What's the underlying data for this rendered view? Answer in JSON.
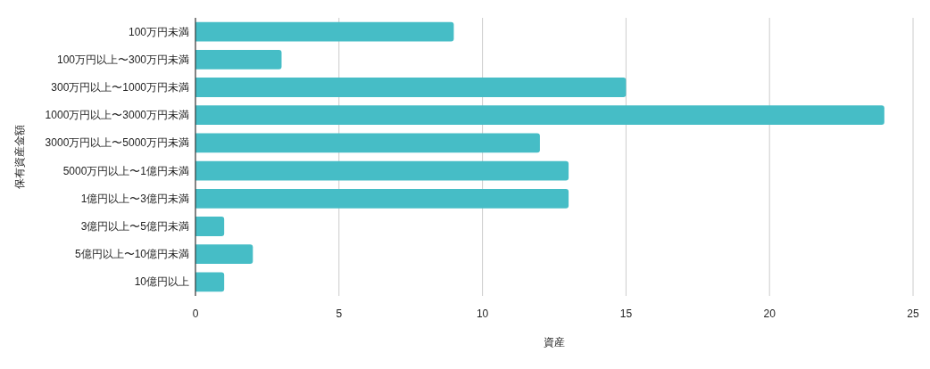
{
  "chart_data": {
    "type": "bar",
    "orientation": "horizontal",
    "xlabel": "資産",
    "ylabel": "保有資産金額",
    "categories": [
      "100万円未満",
      "100万円以上〜300万円未満",
      "300万円以上〜1000万円未満",
      "1000万円以上〜3000万円未満",
      "3000万円以上〜5000万円未満",
      "5000万円以上〜1億円未満",
      "1億円以上〜3億円未満",
      "3億円以上〜5億円未満",
      "5億円以上〜10億円未満",
      "10億円以上"
    ],
    "values": [
      9,
      3,
      15,
      24,
      12,
      13,
      13,
      1,
      2,
      1
    ],
    "color": "#46bdc6",
    "xlim": [
      0,
      25
    ],
    "xticks": [
      0,
      5,
      10,
      15,
      20,
      25
    ],
    "grid": "x"
  }
}
